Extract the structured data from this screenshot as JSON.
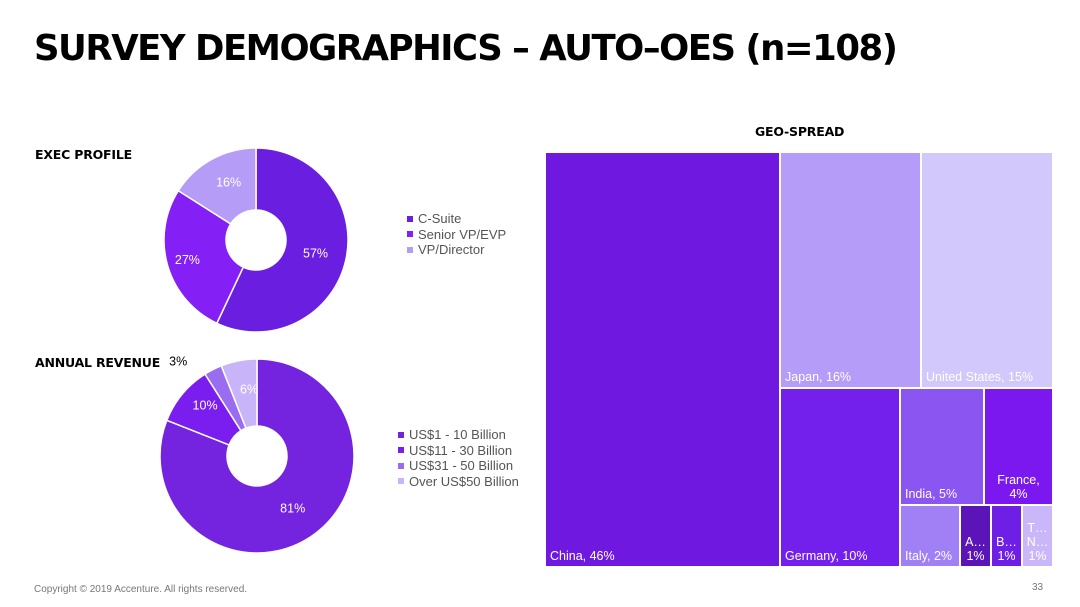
{
  "title": "SURVEY DEMOGRAPHICS – AUTO–OES (n=108)",
  "footer": {
    "copyright": "Copyright © 2019 Accenture. All rights reserved.",
    "page": "33"
  },
  "chart_data": [
    {
      "type": "pie",
      "title": "EXEC PROFILE",
      "donut": true,
      "start_angle": "12 o'clock, clockwise",
      "legend_position": "right",
      "slices": [
        {
          "label": "C-Suite",
          "value": 57,
          "display": "57%",
          "color": "#6a1ee0",
          "label_color": "#ffffff"
        },
        {
          "label": "Senior VP/EVP",
          "value": 27,
          "display": "27%",
          "color": "#8420f5",
          "label_color": "#ffffff"
        },
        {
          "label": "VP/Director",
          "value": 16,
          "display": "16%",
          "color": "#b49cf7",
          "label_color": "#ffffff"
        }
      ]
    },
    {
      "type": "pie",
      "title": "ANNUAL REVENUE",
      "donut": true,
      "start_angle": "12 o'clock, clockwise",
      "legend_position": "right",
      "slices": [
        {
          "label": "US$1 - 10 Billion",
          "value": 81,
          "display": "81%",
          "color": "#7424de",
          "label_color": "#ffffff"
        },
        {
          "label": "US$11 - 30 Billion",
          "value": 10,
          "display": "10%",
          "color": "#7a1ef0",
          "label_color": "#ffffff"
        },
        {
          "label": "US$31 - 50 Billion",
          "value": 3,
          "display": "3%",
          "color": "#9a6cf0",
          "label_color": "#000000"
        },
        {
          "label": "Over US$50 Billion",
          "value": 6,
          "display": "6%",
          "color": "#c7b4f9",
          "label_color": "#ffffff"
        }
      ]
    },
    {
      "type": "treemap",
      "title": "GEO-SPREAD",
      "nodes": [
        {
          "label": "China, 46%",
          "name": "China",
          "value": 46,
          "color": "#6f19e0"
        },
        {
          "label": "Japan, 16%",
          "name": "Japan",
          "value": 16,
          "color": "#b59cf8"
        },
        {
          "label": "United States, 15%",
          "name": "United States",
          "value": 15,
          "color": "#d3c8fb"
        },
        {
          "label": "Germany, 10%",
          "name": "Germany",
          "value": 10,
          "color": "#7420ec"
        },
        {
          "label": "India, 5%",
          "name": "India",
          "value": 5,
          "color": "#8b55f1"
        },
        {
          "label": "France, 4%",
          "name": "France",
          "value": 4,
          "color": "#7b18ef"
        },
        {
          "label": "Italy, 2%",
          "name": "Italy",
          "value": 2,
          "color": "#a180f5"
        },
        {
          "label": "A… 1%",
          "name": "A…",
          "value": 1,
          "color": "#5a14b8"
        },
        {
          "label": "B… 1%",
          "name": "B…",
          "value": 1,
          "color": "#6f1ee6"
        },
        {
          "label": "T… N… 1%",
          "name": "T… N…",
          "value": 1,
          "color": "#c9b7f9"
        }
      ]
    }
  ]
}
